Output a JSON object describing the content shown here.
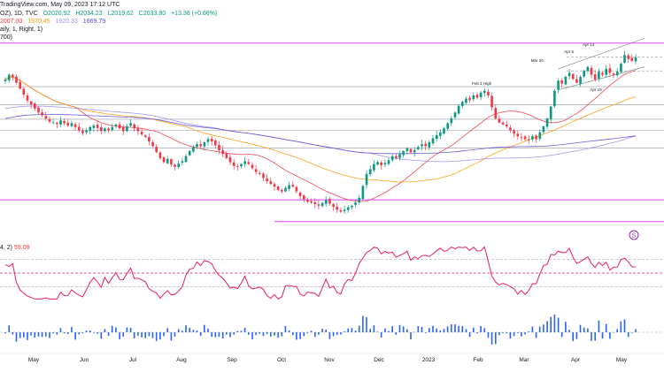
{
  "header": {
    "source": "TradingView.com, May 09, 2023 17:12 UTC",
    "symbol_suffix": "OZ), 1D, TVC",
    "open": "O2020.92",
    "high": "H2034.23",
    "low": "L2019.62",
    "close": "C2033.80",
    "change": "+13.36 (+0.66%)",
    "ma_line": [
      "2007.00",
      "1970.45",
      "1920.33",
      "1869.79"
    ],
    "ind2": "aily, 1, Right, 1)",
    "ind3": "700)"
  },
  "rsi": {
    "label": "4, 2)",
    "value": "59.09"
  },
  "annotations": [
    "Apr 13",
    "Apr 5",
    "Mar 20",
    "Feb 2 High",
    "Apr 19"
  ],
  "x_axis": [
    "May",
    "Jun",
    "Jul",
    "Aug",
    "Sep",
    "Oct",
    "Nov",
    "Dec",
    "2023",
    "Feb",
    "Mar",
    "Apr",
    "May"
  ],
  "colors": {
    "up": "#089981",
    "down": "#f23645",
    "ma20": "#f23645",
    "ma50": "#ff9800",
    "ma100": "#9c8ff0",
    "ma200": "#5b4fd6",
    "magenta": "#e040fb",
    "rsi": "#e91e63",
    "volume": "#2962ff"
  },
  "chart_data": {
    "type": "candlestick",
    "title": "",
    "closes": [
      1978,
      1990,
      1985,
      1970,
      1955,
      1940,
      1925,
      1915,
      1905,
      1895,
      1888,
      1880,
      1872,
      1870,
      1866,
      1875,
      1868,
      1862,
      1868,
      1858,
      1850,
      1843,
      1850,
      1858,
      1862,
      1856,
      1848,
      1855,
      1850,
      1858,
      1865,
      1855,
      1848,
      1860,
      1868,
      1855,
      1848,
      1840,
      1833,
      1822,
      1810,
      1795,
      1780,
      1770,
      1778,
      1764,
      1758,
      1766,
      1772,
      1785,
      1798,
      1808,
      1815,
      1810,
      1820,
      1828,
      1822,
      1812,
      1800,
      1790,
      1780,
      1770,
      1760,
      1758,
      1765,
      1772,
      1765,
      1755,
      1745,
      1740,
      1730,
      1722,
      1715,
      1708,
      1700,
      1696,
      1705,
      1712,
      1708,
      1696,
      1684,
      1676,
      1670,
      1668,
      1664,
      1660,
      1667,
      1675,
      1665,
      1657,
      1650,
      1645,
      1650,
      1656,
      1660,
      1668,
      1680,
      1710,
      1740,
      1752,
      1765,
      1770,
      1762,
      1768,
      1775,
      1785,
      1780,
      1790,
      1798,
      1805,
      1795,
      1800,
      1808,
      1815,
      1810,
      1820,
      1830,
      1838,
      1845,
      1855,
      1868,
      1880,
      1895,
      1912,
      1922,
      1930,
      1926,
      1938,
      1932,
      1945,
      1950,
      1938,
      1908,
      1880,
      1870,
      1865,
      1860,
      1850,
      1842,
      1835,
      1832,
      1828,
      1825,
      1835,
      1828,
      1845,
      1860,
      1880,
      1910,
      1950,
      1975,
      1968,
      1985,
      1995,
      1980,
      1970,
      1985,
      2000,
      2010,
      1990,
      1978,
      1998,
      1990,
      2005,
      1995,
      1990,
      1998,
      2018,
      2040,
      2030,
      2025,
      2034
    ],
    "ma_periods": [
      20,
      50,
      100,
      200
    ],
    "rsi_ylim": [
      10,
      90
    ],
    "rsi_levels": [
      70,
      50,
      30
    ],
    "levels": [
      2070,
      2035,
      2000,
      1960,
      1915,
      1878,
      1850,
      1805,
      1675,
      1620
    ]
  }
}
